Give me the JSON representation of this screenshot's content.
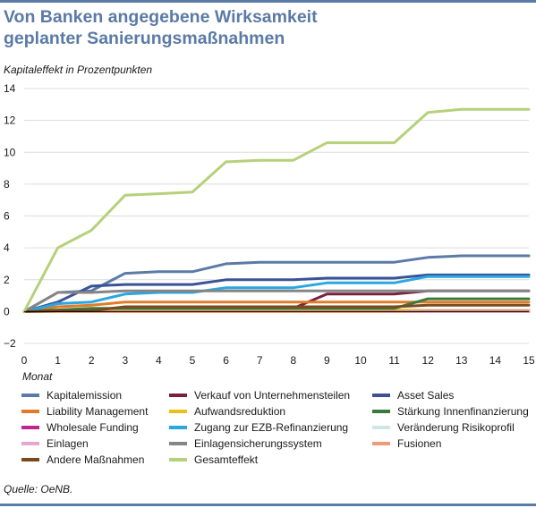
{
  "colors": {
    "title": "#5b7aa6",
    "rule": "#5b7aa6",
    "zero_line": "#000000"
  },
  "header": {
    "title_line1": "Von Banken angegebene Wirksamkeit",
    "title_line2": "geplanter Sanierungsmaßnahmen"
  },
  "source": "Quelle: OeNB.",
  "chart_data": {
    "type": "line",
    "title": "Von Banken angegebene Wirksamkeit geplanter Sanierungsmaßnahmen",
    "ylabel": "Kapitaleffekt in Prozentpunkten",
    "xlabel": "Monat",
    "x": [
      0,
      1,
      2,
      3,
      4,
      5,
      6,
      7,
      8,
      9,
      10,
      11,
      12,
      13,
      14,
      15
    ],
    "xlim": [
      0,
      15
    ],
    "ylim": [
      -2,
      14
    ],
    "y_ticks": [
      -2,
      0,
      2,
      4,
      6,
      8,
      10,
      12,
      14
    ],
    "x_tick_labels": [
      "0",
      "1",
      "2",
      "3",
      "4",
      "5",
      "6",
      "7",
      "8",
      "9",
      "10",
      "11",
      "12",
      "13",
      "14",
      "15"
    ],
    "y_tick_labels": [
      "−2",
      "0",
      "2",
      "4",
      "6",
      "8",
      "10",
      "12",
      "14"
    ],
    "grid": "horizontal",
    "legend_position": "bottom",
    "series": [
      {
        "name": "Kapitalemission",
        "color": "#5b7aa6",
        "values": [
          0,
          1.2,
          1.3,
          2.4,
          2.5,
          2.5,
          3.0,
          3.1,
          3.1,
          3.1,
          3.1,
          3.1,
          3.4,
          3.5,
          3.5,
          3.5
        ]
      },
      {
        "name": "Verkauf von Unternehmensteilen",
        "color": "#7a1f3d",
        "values": [
          0,
          0,
          0,
          0,
          0,
          0,
          0.1,
          0.2,
          0.2,
          1.1,
          1.1,
          1.1,
          1.3,
          1.3,
          1.3,
          1.3
        ]
      },
      {
        "name": "Asset Sales",
        "color": "#3b5396",
        "values": [
          0,
          0.6,
          1.6,
          1.7,
          1.7,
          1.7,
          2.0,
          2.0,
          2.0,
          2.1,
          2.1,
          2.1,
          2.3,
          2.3,
          2.3,
          2.3
        ]
      },
      {
        "name": "Liability Management",
        "color": "#e07b2a",
        "values": [
          0,
          0.3,
          0.4,
          0.6,
          0.6,
          0.6,
          0.6,
          0.6,
          0.6,
          0.6,
          0.6,
          0.6,
          0.6,
          0.6,
          0.6,
          0.6
        ]
      },
      {
        "name": "Aufwandsreduktion",
        "color": "#e8c21b",
        "values": [
          0,
          0.05,
          0.05,
          0.1,
          0.1,
          0.1,
          0.1,
          0.1,
          0.1,
          0.1,
          0.1,
          0.1,
          0.1,
          0.1,
          0.1,
          0.1
        ]
      },
      {
        "name": "Stärkung Innenfinanzierung",
        "color": "#3a7a3a",
        "values": [
          0,
          0.1,
          0.2,
          0.2,
          0.2,
          0.2,
          0.2,
          0.2,
          0.2,
          0.2,
          0.2,
          0.2,
          0.8,
          0.8,
          0.8,
          0.8
        ]
      },
      {
        "name": "Wholesale Funding",
        "color": "#c0258a",
        "values": [
          0,
          0,
          0,
          0,
          0,
          0,
          0,
          0,
          0,
          0,
          0,
          0,
          0,
          0,
          0,
          0
        ]
      },
      {
        "name": "Zugang zur EZB-Refinanzierung",
        "color": "#2aa7e0",
        "values": [
          0,
          0.5,
          0.6,
          1.1,
          1.2,
          1.2,
          1.5,
          1.5,
          1.5,
          1.8,
          1.8,
          1.8,
          2.2,
          2.2,
          2.2,
          2.2
        ]
      },
      {
        "name": "Veränderung Risikoprofil",
        "color": "#cfe6e6",
        "values": [
          0,
          0,
          0,
          0,
          0,
          0,
          0,
          0,
          0,
          0,
          0,
          0,
          0.1,
          0.1,
          0.1,
          0.1
        ]
      },
      {
        "name": "Einlagen",
        "color": "#e6a8cf",
        "values": [
          0,
          0,
          0,
          0,
          0,
          0,
          0,
          0,
          0,
          0,
          0,
          0,
          0,
          0,
          0,
          0
        ]
      },
      {
        "name": "Einlagensicherungssystem",
        "color": "#858585",
        "values": [
          0,
          1.2,
          1.2,
          1.3,
          1.3,
          1.3,
          1.3,
          1.3,
          1.3,
          1.3,
          1.3,
          1.3,
          1.3,
          1.3,
          1.3,
          1.3
        ]
      },
      {
        "name": "Fusionen",
        "color": "#f09a7a",
        "values": [
          0,
          0,
          0,
          0,
          0,
          0,
          0,
          0,
          0,
          0,
          0,
          0,
          0.05,
          0.05,
          0.05,
          0.05
        ]
      },
      {
        "name": "Andere Maßnahmen",
        "color": "#7a4a1f",
        "values": [
          0,
          0.05,
          0.05,
          0.3,
          0.3,
          0.3,
          0.3,
          0.3,
          0.3,
          0.3,
          0.3,
          0.3,
          0.4,
          0.4,
          0.4,
          0.4
        ]
      },
      {
        "name": "Gesamteffekt",
        "color": "#b5d17a",
        "values": [
          0,
          4.0,
          5.1,
          7.3,
          7.4,
          7.5,
          9.4,
          9.5,
          9.5,
          10.6,
          10.6,
          10.6,
          12.5,
          12.7,
          12.7,
          12.7
        ]
      }
    ],
    "legend_order": [
      0,
      1,
      2,
      3,
      4,
      5,
      6,
      7,
      8,
      9,
      10,
      11,
      12,
      13
    ]
  }
}
